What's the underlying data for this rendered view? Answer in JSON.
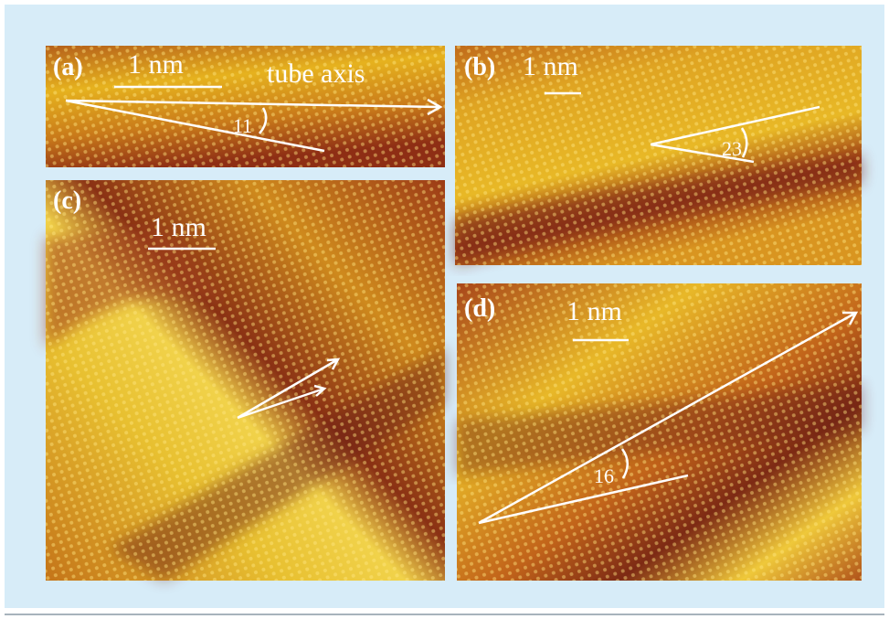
{
  "panels": [
    {
      "label": "(a)",
      "scale": "1 nm",
      "axis_label": "tube axis",
      "angle": "11"
    },
    {
      "label": "(b)",
      "scale": "1 nm",
      "angle": "23"
    },
    {
      "label": "(c)",
      "scale": "1 nm"
    },
    {
      "label": "(d)",
      "scale": "1 nm",
      "angle": "16"
    }
  ]
}
